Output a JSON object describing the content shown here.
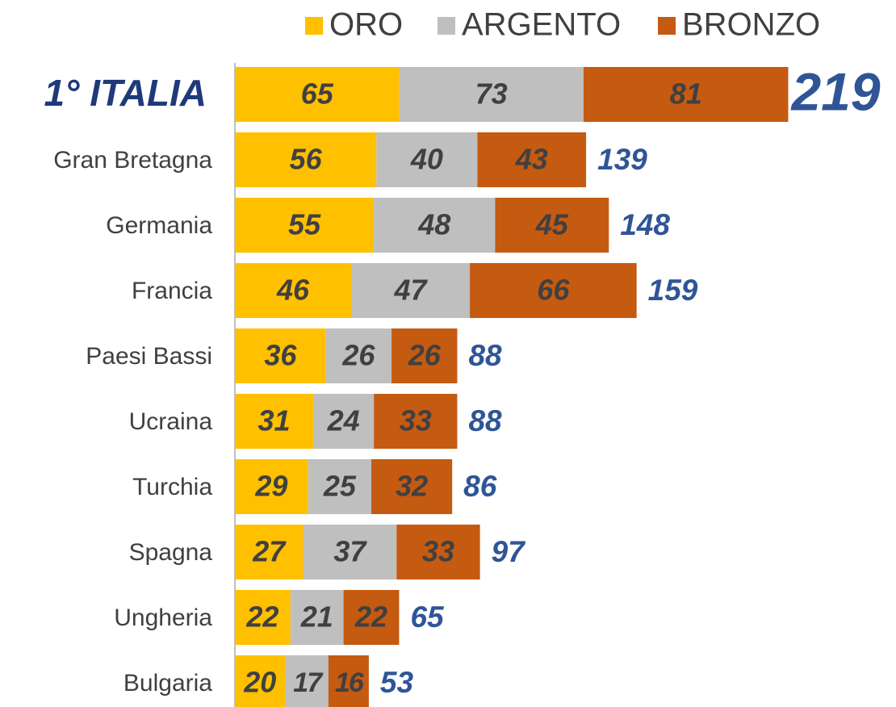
{
  "chart_data": {
    "type": "stacked-bar-horizontal",
    "categories": [
      "1° ITALIA",
      "Gran Bretagna",
      "Germania",
      "Francia",
      "Paesi Bassi",
      "Ucraina",
      "Turchia",
      "Spagna",
      "Ungheria",
      "Bulgaria"
    ],
    "series": [
      {
        "name": "ORO",
        "color": "#FFC000",
        "values": [
          65,
          56,
          55,
          46,
          36,
          31,
          29,
          27,
          22,
          20
        ]
      },
      {
        "name": "ARGENTO",
        "color": "#BFBFBF",
        "values": [
          73,
          40,
          48,
          47,
          26,
          24,
          25,
          37,
          21,
          17
        ]
      },
      {
        "name": "BRONZO",
        "color": "#C55A11",
        "values": [
          81,
          43,
          45,
          66,
          26,
          33,
          32,
          33,
          22,
          16
        ]
      }
    ],
    "totals": [
      219,
      139,
      148,
      159,
      88,
      88,
      86,
      97,
      65,
      53
    ],
    "legend": "top"
  }
}
